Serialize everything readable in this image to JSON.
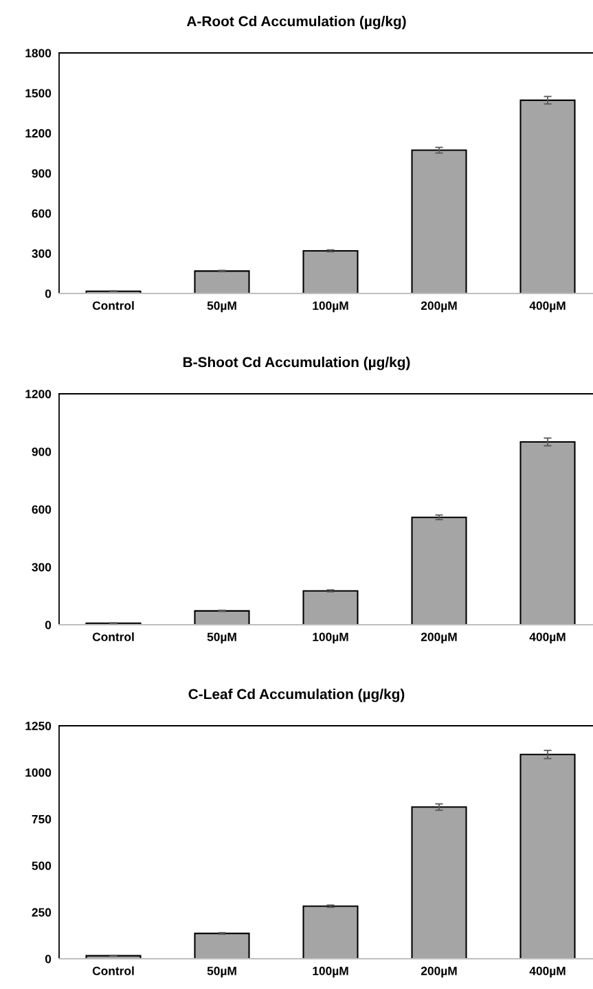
{
  "chart_data": [
    {
      "type": "bar",
      "title": "A-Root Cd Accumulation (µg/kg)",
      "categories": [
        "Control",
        "50µM",
        "100µM",
        "200µM",
        "400µM"
      ],
      "values": [
        17,
        168,
        319,
        1072,
        1446
      ],
      "errors": [
        3,
        5,
        7,
        21,
        28
      ],
      "color": "#a5a5a5",
      "ylim": [
        0,
        1800
      ],
      "yticks": [
        0,
        300,
        600,
        900,
        1200,
        1500,
        1800
      ]
    },
    {
      "type": "bar",
      "title": "B-Shoot Cd Accumulation (µg/kg)",
      "categories": [
        "Control",
        "50µM",
        "100µM",
        "200µM",
        "400µM"
      ],
      "values": [
        8,
        72,
        176,
        558,
        950
      ],
      "errors": [
        2,
        3,
        5,
        12,
        20
      ],
      "color": "#a5a5a5",
      "ylim": [
        0,
        1200
      ],
      "yticks": [
        0,
        300,
        600,
        900,
        1200
      ]
    },
    {
      "type": "bar",
      "title": "C-Leaf Cd Accumulation (µg/kg)",
      "categories": [
        "Control",
        "50µM",
        "100µM",
        "200µM",
        "400µM"
      ],
      "values": [
        16,
        136,
        282,
        814,
        1096
      ],
      "errors": [
        2,
        4,
        6,
        17,
        22
      ],
      "color": "#a5a5a5",
      "ylim": [
        0,
        1250
      ],
      "yticks": [
        0,
        250,
        500,
        750,
        1000,
        1250
      ]
    }
  ]
}
